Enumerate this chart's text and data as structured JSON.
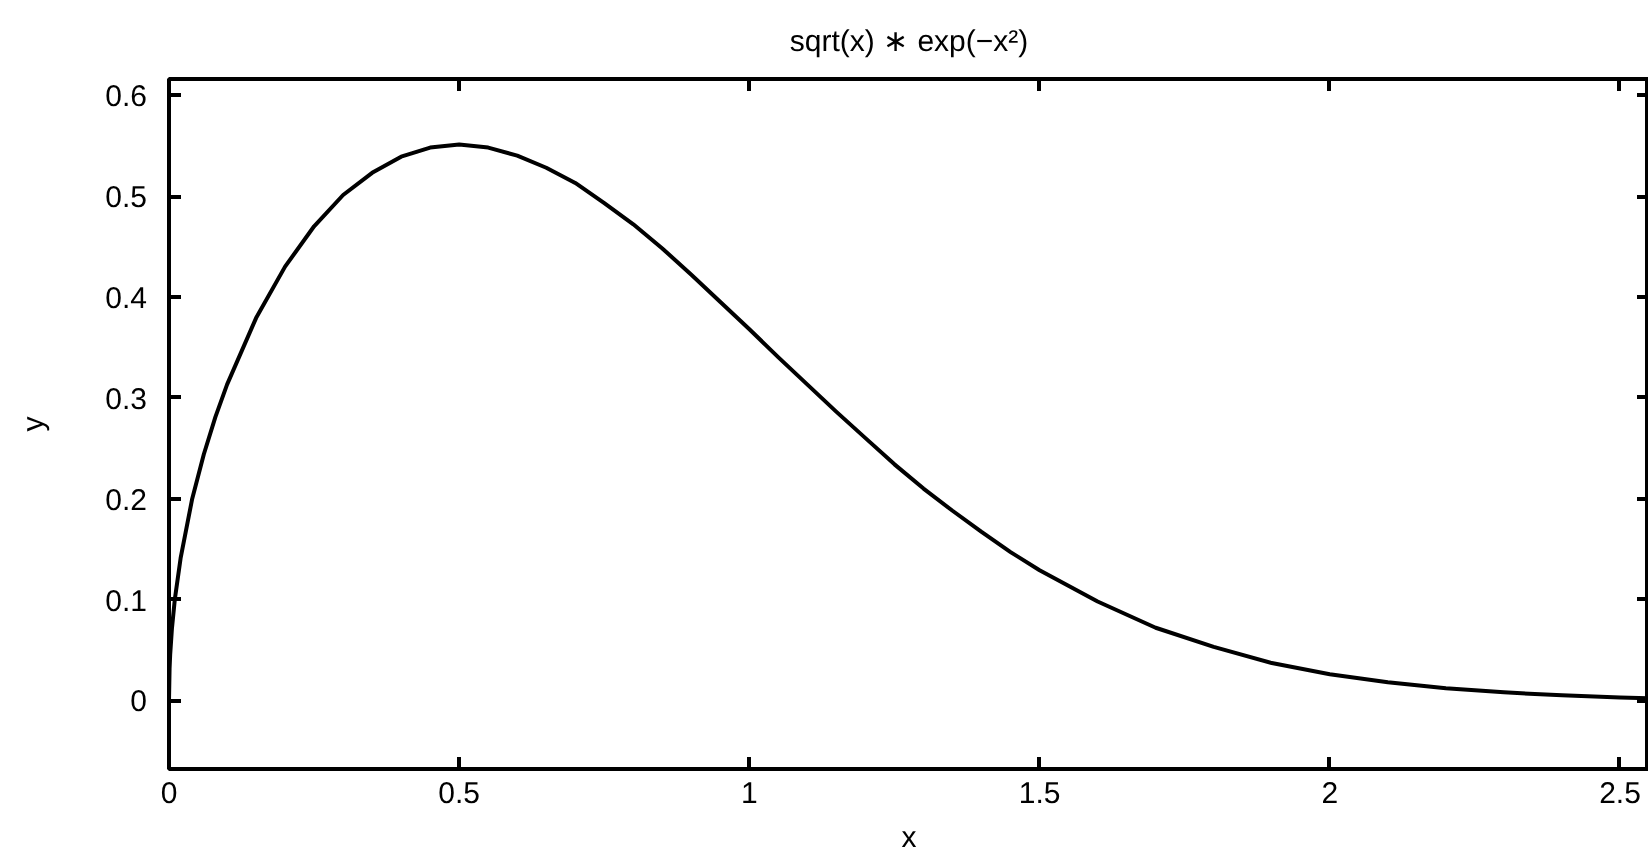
{
  "chart_data": {
    "type": "line",
    "title": "sqrt(x) ∗ exp(−x²)",
    "xlabel": "x",
    "ylabel": "y",
    "x": [
      0,
      0.001,
      0.002,
      0.005,
      0.01,
      0.02,
      0.04,
      0.06,
      0.08,
      0.1,
      0.15,
      0.2,
      0.25,
      0.3,
      0.35,
      0.4,
      0.45,
      0.5,
      0.55,
      0.6,
      0.65,
      0.7,
      0.75,
      0.8,
      0.85,
      0.9,
      0.95,
      1.0,
      1.05,
      1.1,
      1.15,
      1.2,
      1.25,
      1.3,
      1.35,
      1.4,
      1.45,
      1.5,
      1.6,
      1.7,
      1.8,
      1.9,
      2.0,
      2.1,
      2.2,
      2.3,
      2.4,
      2.5,
      2.55
    ],
    "series": [
      {
        "color": "#000000",
        "values": [
          0,
          0.032,
          0.045,
          0.071,
          0.1,
          0.141,
          0.2,
          0.244,
          0.281,
          0.313,
          0.379,
          0.43,
          0.47,
          0.501,
          0.523,
          0.539,
          0.548,
          0.551,
          0.548,
          0.54,
          0.528,
          0.513,
          0.493,
          0.472,
          0.448,
          0.422,
          0.395,
          0.368,
          0.34,
          0.313,
          0.286,
          0.26,
          0.234,
          0.21,
          0.188,
          0.167,
          0.147,
          0.129,
          0.098,
          0.072,
          0.053,
          0.037,
          0.026,
          0.018,
          0.012,
          0.008,
          0.005,
          0.003,
          0.002
        ]
      }
    ],
    "xlim": [
      0,
      2.55
    ],
    "ylim": [
      -0.068,
      0.616
    ],
    "xticks": [
      0,
      0.5,
      1,
      1.5,
      2,
      2.5
    ],
    "yticks": [
      0,
      0.1,
      0.2,
      0.3,
      0.4,
      0.5,
      0.6
    ],
    "grid": false
  }
}
